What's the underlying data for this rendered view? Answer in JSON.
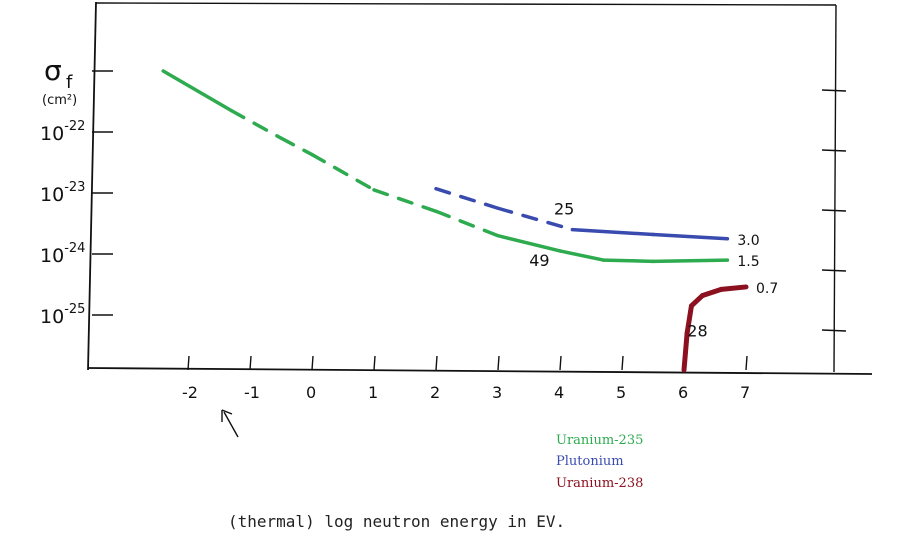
{
  "chart_data": {
    "type": "line",
    "title": "",
    "xlabel": "(thermal) log neutron energy in EV.",
    "ylabel": "σf (cm²)",
    "ylabel_symbol": "σ",
    "ylabel_sub": "f",
    "ylabel_unit": "(cm²)",
    "xlim": [
      -3.5,
      8.5
    ],
    "ylim": [
      -25.9,
      -19.9
    ],
    "y_scale": "log",
    "x_ticks": [
      -2,
      -1,
      0,
      1,
      2,
      3,
      4,
      5,
      6,
      7
    ],
    "x_tick_labels": [
      "-2",
      "-1",
      "0",
      "1",
      "2",
      "3",
      "4",
      "5",
      "6",
      "7"
    ],
    "y_ticks": [
      -21,
      -22,
      -23,
      -24,
      -25
    ],
    "y_tick_labels": [
      {
        "base": "10",
        "exp": "-22",
        "value": -22
      },
      {
        "base": "10",
        "exp": "-23",
        "value": -23
      },
      {
        "base": "10",
        "exp": "-24",
        "value": -24
      },
      {
        "base": "10",
        "exp": "-25",
        "value": -25
      }
    ],
    "grid": false,
    "legend_placement": "bottom-center",
    "series": [
      {
        "name": "Uranium-235",
        "curve_label": "25",
        "end_label": "1.5",
        "color": "#2eaa4f",
        "dashed_range": [
          -1.3,
          3
        ],
        "points": [
          [
            -2.4,
            -21
          ],
          [
            -1.3,
            -21.65
          ],
          [
            -0.5,
            -22.1
          ],
          [
            0,
            -22.37
          ],
          [
            1,
            -22.95
          ],
          [
            2,
            -23.3
          ],
          [
            3,
            -23.7
          ],
          [
            4,
            -23.95
          ],
          [
            4.7,
            -24.1
          ],
          [
            5.5,
            -24.12
          ],
          [
            6.7,
            -24.1
          ]
        ]
      },
      {
        "name": "Plutonium",
        "curve_label": "49",
        "end_label": "3.0",
        "color": "#3a4bb0",
        "dashed_range": [
          2,
          4.2
        ],
        "points": [
          [
            2,
            -22.93
          ],
          [
            3,
            -23.25
          ],
          [
            4.2,
            -23.6
          ],
          [
            5.5,
            -23.68
          ],
          [
            6.7,
            -23.75
          ]
        ]
      },
      {
        "name": "Uranium-238",
        "curve_label": "28",
        "end_label": "0.7",
        "color": "#8b1020",
        "dashed_range": null,
        "points": [
          [
            6,
            -25.9
          ],
          [
            6.05,
            -25.3
          ],
          [
            6.12,
            -24.85
          ],
          [
            6.3,
            -24.68
          ],
          [
            6.6,
            -24.58
          ],
          [
            7,
            -24.54
          ]
        ]
      }
    ]
  }
}
